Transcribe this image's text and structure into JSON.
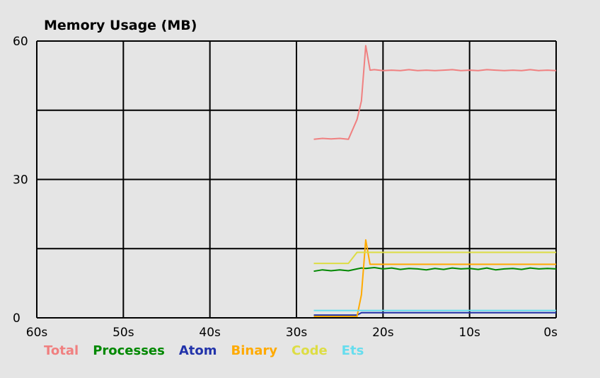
{
  "chart_data": {
    "type": "line",
    "title": "Memory Usage (MB)",
    "xlabel": "",
    "ylabel": "",
    "xlim": [
      60,
      0
    ],
    "ylim": [
      0,
      60
    ],
    "x_ticks": [
      "60s",
      "50s",
      "40s",
      "30s",
      "20s",
      "10s",
      "0s"
    ],
    "y_tick_labels": [
      "60",
      "30",
      "0"
    ],
    "grid": true,
    "legend_position": "bottom-left",
    "x": [
      28,
      27,
      26,
      25,
      24,
      23,
      22.5,
      22,
      21.5,
      21,
      20,
      19,
      18,
      17,
      16,
      15,
      14,
      13,
      12,
      11,
      10,
      9,
      8,
      7,
      6,
      5,
      4,
      3,
      2,
      1,
      0
    ],
    "series": [
      {
        "name": "Total",
        "color": "#f08080",
        "values": [
          38.7,
          38.9,
          38.8,
          38.9,
          38.7,
          43.0,
          47.0,
          59.0,
          53.7,
          53.8,
          53.6,
          53.7,
          53.6,
          53.8,
          53.6,
          53.7,
          53.6,
          53.7,
          53.8,
          53.6,
          53.7,
          53.6,
          53.8,
          53.7,
          53.6,
          53.7,
          53.6,
          53.8,
          53.6,
          53.7,
          53.6
        ]
      },
      {
        "name": "Processes",
        "color": "#008800",
        "values": [
          10.1,
          10.4,
          10.2,
          10.4,
          10.2,
          10.6,
          10.8,
          10.7,
          10.8,
          10.9,
          10.6,
          10.8,
          10.5,
          10.7,
          10.6,
          10.4,
          10.7,
          10.5,
          10.8,
          10.6,
          10.7,
          10.5,
          10.8,
          10.4,
          10.6,
          10.7,
          10.5,
          10.8,
          10.6,
          10.7,
          10.6
        ]
      },
      {
        "name": "Atom",
        "color": "#2233aa",
        "values": [
          0.6,
          0.6,
          0.6,
          0.6,
          0.6,
          0.6,
          1.1,
          1.1,
          1.1,
          1.1,
          1.1,
          1.1,
          1.1,
          1.1,
          1.1,
          1.1,
          1.1,
          1.1,
          1.1,
          1.1,
          1.1,
          1.1,
          1.1,
          1.1,
          1.1,
          1.1,
          1.1,
          1.1,
          1.1,
          1.1,
          1.1
        ]
      },
      {
        "name": "Binary",
        "color": "#ffaa00",
        "values": [
          0.3,
          0.3,
          0.3,
          0.3,
          0.3,
          0.3,
          5.0,
          16.9,
          11.6,
          11.6,
          11.6,
          11.6,
          11.6,
          11.6,
          11.6,
          11.6,
          11.6,
          11.6,
          11.6,
          11.6,
          11.6,
          11.6,
          11.6,
          11.6,
          11.6,
          11.6,
          11.6,
          11.6,
          11.6,
          11.6,
          11.6
        ]
      },
      {
        "name": "Code",
        "color": "#dddd44",
        "values": [
          11.8,
          11.8,
          11.8,
          11.8,
          11.8,
          14.2,
          14.2,
          14.2,
          14.2,
          14.2,
          14.2,
          14.2,
          14.2,
          14.2,
          14.2,
          14.2,
          14.2,
          14.2,
          14.2,
          14.2,
          14.2,
          14.2,
          14.2,
          14.2,
          14.2,
          14.2,
          14.2,
          14.2,
          14.2,
          14.2,
          14.2
        ]
      },
      {
        "name": "Ets",
        "color": "#66ddee",
        "values": [
          1.6,
          1.6,
          1.6,
          1.6,
          1.6,
          1.6,
          1.6,
          1.6,
          1.6,
          1.6,
          1.6,
          1.6,
          1.6,
          1.6,
          1.6,
          1.6,
          1.6,
          1.6,
          1.6,
          1.6,
          1.6,
          1.6,
          1.6,
          1.6,
          1.6,
          1.6,
          1.6,
          1.6,
          1.6,
          1.6,
          1.6
        ]
      }
    ]
  }
}
